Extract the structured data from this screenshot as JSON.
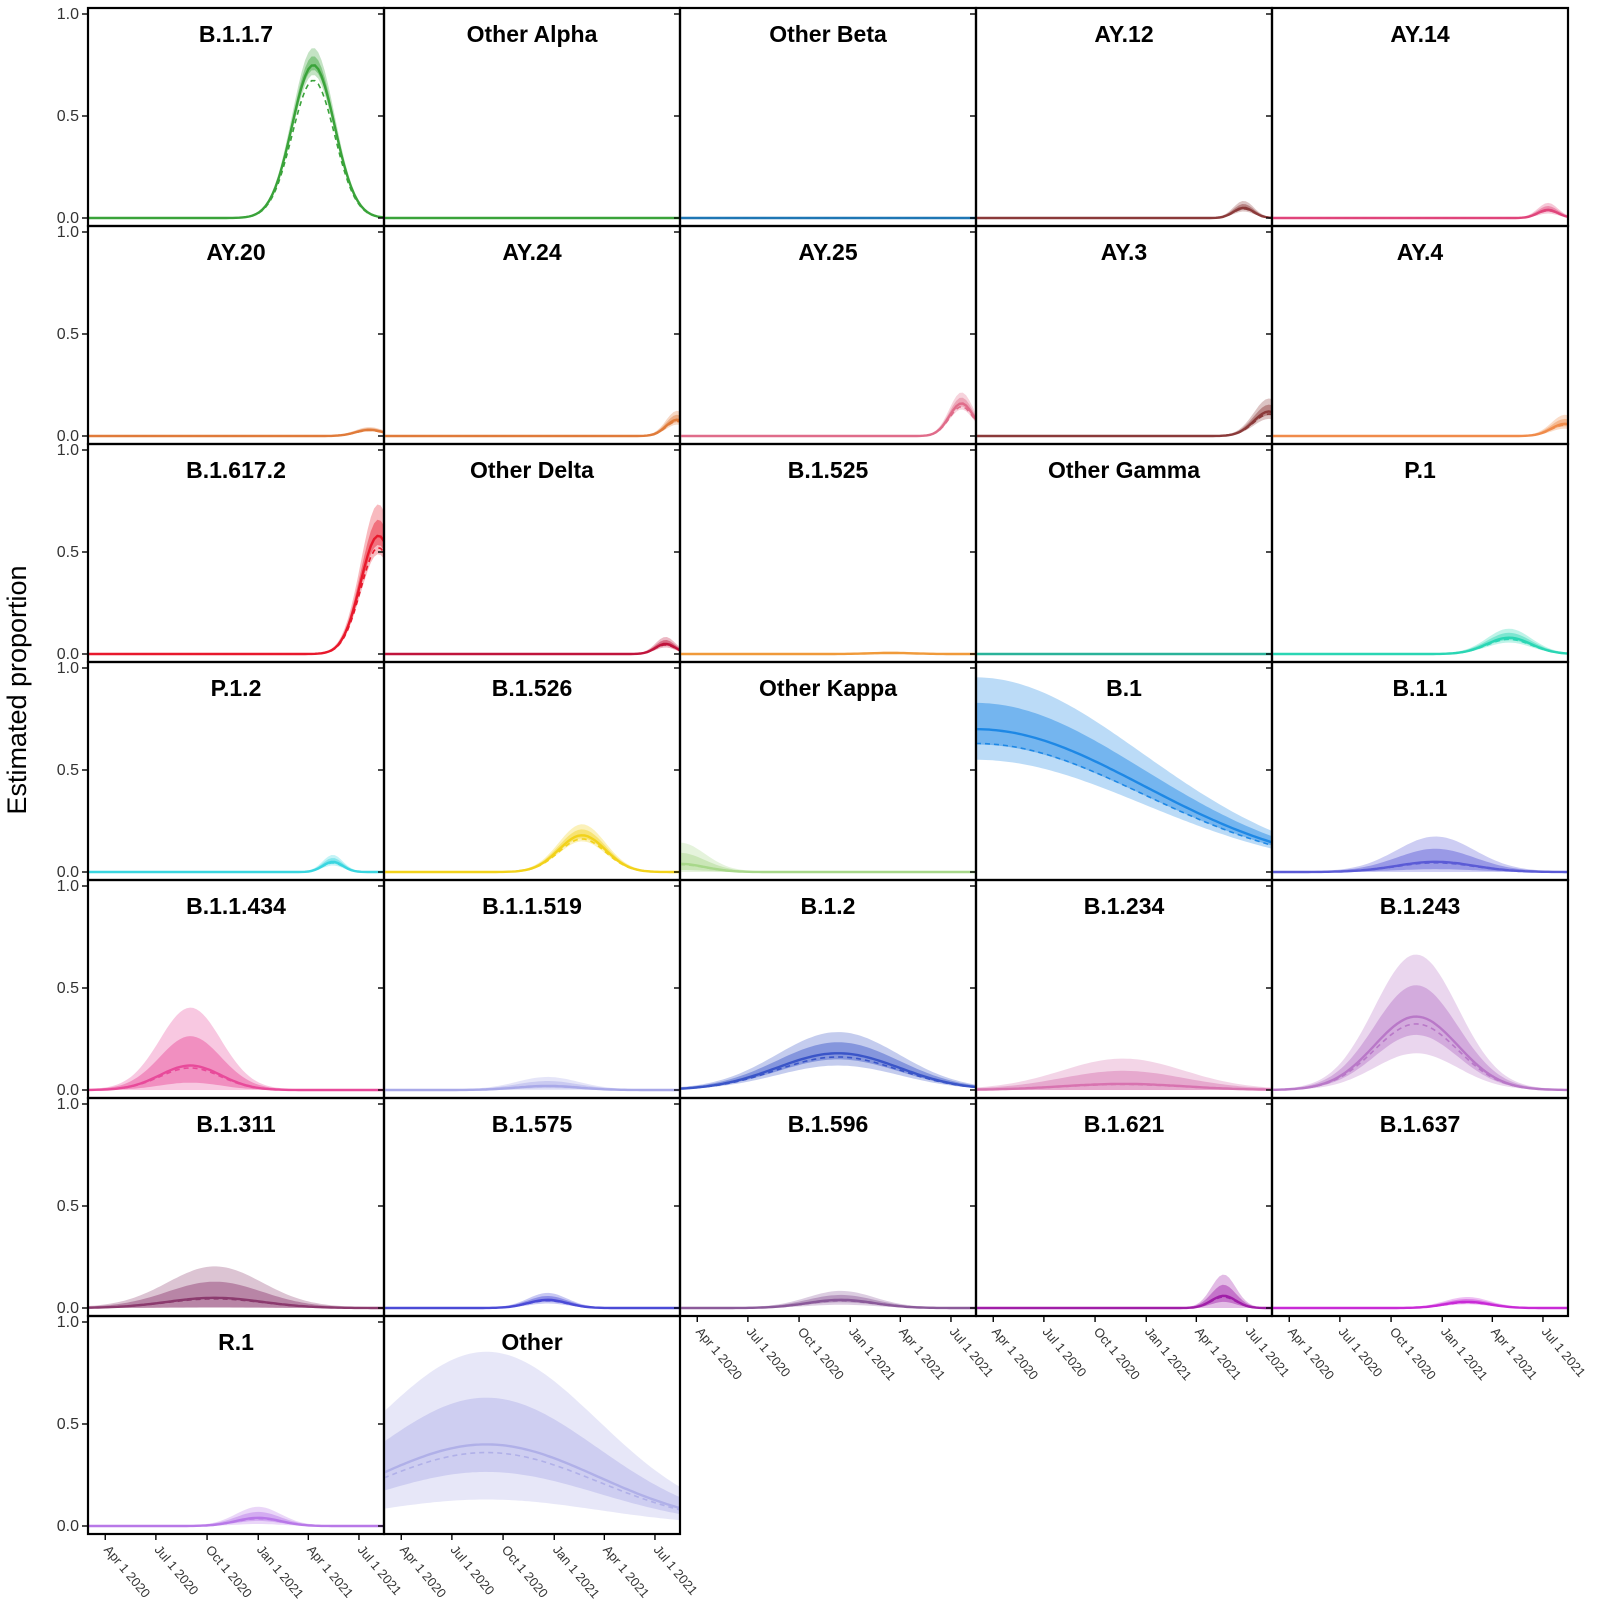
{
  "chart_data": {
    "type": "area",
    "ylabel": "Estimated proportion",
    "xlabel": "",
    "x_ticks": [
      "Apr 1 2020",
      "Jul 1 2020",
      "Oct 1 2020",
      "Jan 1 2021",
      "Apr 1 2021",
      "Jul 1 2021"
    ],
    "y_ticks": [
      "0.0",
      "0.5",
      "1.0"
    ],
    "ylim": [
      0,
      1
    ],
    "xlim": [
      "2020-03-01",
      "2021-08-15"
    ],
    "grid": false,
    "layout": {
      "rows": 7,
      "columns": 5
    },
    "panels": [
      {
        "title": "B.1.1.7",
        "color": "#3aa33a",
        "peak_date": "2021-04-10",
        "peak": 0.75,
        "width_days": 38,
        "band": 0.08
      },
      {
        "title": "Other Alpha",
        "color": "#3aa33a",
        "peak_date": "2021-03-01",
        "peak": 0.0,
        "width_days": 40,
        "band": 0.0
      },
      {
        "title": "Other Beta",
        "color": "#1f77b4",
        "peak_date": "2021-03-01",
        "peak": 0.0,
        "width_days": 40,
        "band": 0.0
      },
      {
        "title": "AY.12",
        "color": "#8b3a3a",
        "peak_date": "2021-06-25",
        "peak": 0.05,
        "width_days": 18,
        "band": 0.03
      },
      {
        "title": "AY.14",
        "color": "#e0457b",
        "peak_date": "2021-07-10",
        "peak": 0.04,
        "width_days": 18,
        "band": 0.03
      },
      {
        "title": "AY.20",
        "color": "#e07b3a",
        "peak_date": "2021-07-20",
        "peak": 0.03,
        "width_days": 25,
        "band": 0.01
      },
      {
        "title": "AY.24",
        "color": "#e07b3a",
        "peak_date": "2021-08-10",
        "peak": 0.08,
        "width_days": 20,
        "band": 0.04
      },
      {
        "title": "AY.25",
        "color": "#e06c8a",
        "peak_date": "2021-07-20",
        "peak": 0.16,
        "width_days": 22,
        "band": 0.05
      },
      {
        "title": "AY.3",
        "color": "#8b3a3a",
        "peak_date": "2021-08-10",
        "peak": 0.12,
        "width_days": 28,
        "band": 0.06
      },
      {
        "title": "AY.4",
        "color": "#f08b4a",
        "peak_date": "2021-08-10",
        "peak": 0.06,
        "width_days": 25,
        "band": 0.04
      },
      {
        "title": "B.1.617.2",
        "color": "#e8192c",
        "peak_date": "2021-08-05",
        "peak": 0.58,
        "width_days": 32,
        "band": 0.15
      },
      {
        "title": "Other Delta",
        "color": "#c0143c",
        "peak_date": "2021-07-20",
        "peak": 0.05,
        "width_days": 18,
        "band": 0.03
      },
      {
        "title": "B.1.525",
        "color": "#f09a3a",
        "peak_date": "2021-03-15",
        "peak": 0.005,
        "width_days": 40,
        "band": 0.003
      },
      {
        "title": "Other Gamma",
        "color": "#2ab39a",
        "peak_date": "2021-03-01",
        "peak": 0.0,
        "width_days": 40,
        "band": 0.0
      },
      {
        "title": "P.1",
        "color": "#2ad6b4",
        "peak_date": "2021-05-01",
        "peak": 0.08,
        "width_days": 40,
        "band": 0.04
      },
      {
        "title": "P.1.2",
        "color": "#3ad6e0",
        "peak_date": "2021-05-15",
        "peak": 0.05,
        "width_days": 18,
        "band": 0.03
      },
      {
        "title": "B.1.526",
        "color": "#f2d21b",
        "peak_date": "2021-02-20",
        "peak": 0.18,
        "width_days": 42,
        "band": 0.05
      },
      {
        "title": "Other Kappa",
        "color": "#a8d88a",
        "peak_date": "2020-03-01",
        "peak": 0.04,
        "width_days": 45,
        "band": 0.1
      },
      {
        "title": "B.1",
        "color": "#1e88e5",
        "peak_date": "2020-03-01",
        "peak": 0.7,
        "width_days": 300,
        "band": 0.25
      },
      {
        "title": "B.1.1",
        "color": "#5b5bd6",
        "peak_date": "2020-12-20",
        "peak": 0.05,
        "width_days": 70,
        "band": 0.12
      },
      {
        "title": "B.1.1.434",
        "color": "#e84a9a",
        "peak_date": "2020-09-01",
        "peak": 0.12,
        "width_days": 55,
        "band": 0.28
      },
      {
        "title": "B.1.1.519",
        "color": "#a8a8e8",
        "peak_date": "2020-12-20",
        "peak": 0.02,
        "width_days": 55,
        "band": 0.04
      },
      {
        "title": "B.1.2",
        "color": "#3a55c8",
        "peak_date": "2020-12-10",
        "peak": 0.18,
        "width_days": 110,
        "band": 0.1
      },
      {
        "title": "B.1.234",
        "color": "#d873b0",
        "peak_date": "2020-11-20",
        "peak": 0.03,
        "width_days": 110,
        "band": 0.12
      },
      {
        "title": "B.1.243",
        "color": "#b978c8",
        "peak_date": "2020-11-15",
        "peak": 0.36,
        "width_days": 75,
        "band": 0.3
      },
      {
        "title": "B.1.311",
        "color": "#8b3a6e",
        "peak_date": "2020-10-15",
        "peak": 0.05,
        "width_days": 85,
        "band": 0.15
      },
      {
        "title": "B.1.575",
        "color": "#4a4ad6",
        "peak_date": "2020-12-20",
        "peak": 0.04,
        "width_days": 35,
        "band": 0.03
      },
      {
        "title": "B.1.596",
        "color": "#8b5a9a",
        "peak_date": "2020-12-15",
        "peak": 0.04,
        "width_days": 60,
        "band": 0.04
      },
      {
        "title": "B.1.621",
        "color": "#a01ea8",
        "peak_date": "2021-05-20",
        "peak": 0.06,
        "width_days": 22,
        "band": 0.1
      },
      {
        "title": "B.1.637",
        "color": "#c82ad6",
        "peak_date": "2021-02-15",
        "peak": 0.03,
        "width_days": 40,
        "band": 0.02
      },
      {
        "title": "R.1",
        "color": "#b878e8",
        "peak_date": "2021-01-01",
        "peak": 0.04,
        "width_days": 40,
        "band": 0.05
      },
      {
        "title": "Other",
        "color": "#b0b0e8",
        "peak_date": "2020-09-01",
        "peak": 0.4,
        "width_days": 200,
        "band": 0.45
      }
    ]
  }
}
